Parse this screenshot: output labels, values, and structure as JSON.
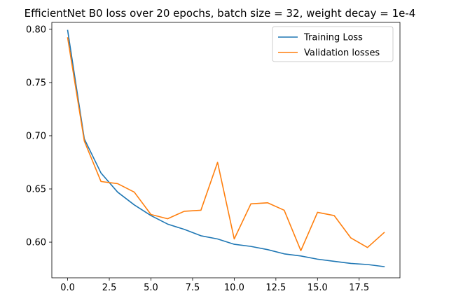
{
  "chart_data": {
    "type": "line",
    "title": "EfficientNet B0 loss over 20 epochs, batch size = 32, weight decay = 1e-4",
    "xlabel": "",
    "ylabel": "",
    "x": [
      0,
      1,
      2,
      3,
      4,
      5,
      6,
      7,
      8,
      9,
      10,
      11,
      12,
      13,
      14,
      15,
      16,
      17,
      18,
      19
    ],
    "xlim": [
      -0.95,
      19.95
    ],
    "ylim": [
      0.5665,
      0.8065
    ],
    "xticks": [
      0.0,
      2.5,
      5.0,
      7.5,
      10.0,
      12.5,
      15.0,
      17.5
    ],
    "xtick_labels": [
      "0.0",
      "2.5",
      "5.0",
      "7.5",
      "10.0",
      "12.5",
      "15.0",
      "17.5"
    ],
    "yticks": [
      0.6,
      0.65,
      0.7,
      0.75,
      0.8
    ],
    "ytick_labels": [
      "0.60",
      "0.65",
      "0.70",
      "0.75",
      "0.80"
    ],
    "grid": false,
    "legend_position": "top-right",
    "series": [
      {
        "name": "Training Loss",
        "color": "#1f77b4",
        "values": [
          0.799,
          0.697,
          0.665,
          0.647,
          0.635,
          0.625,
          0.617,
          0.612,
          0.606,
          0.603,
          0.598,
          0.596,
          0.593,
          0.589,
          0.587,
          0.584,
          0.582,
          0.58,
          0.579,
          0.577
        ]
      },
      {
        "name": "Validation losses",
        "color": "#ff7f0e",
        "values": [
          0.792,
          0.695,
          0.657,
          0.655,
          0.647,
          0.626,
          0.622,
          0.629,
          0.63,
          0.675,
          0.603,
          0.636,
          0.637,
          0.63,
          0.592,
          0.628,
          0.625,
          0.604,
          0.595,
          0.609
        ]
      }
    ]
  }
}
